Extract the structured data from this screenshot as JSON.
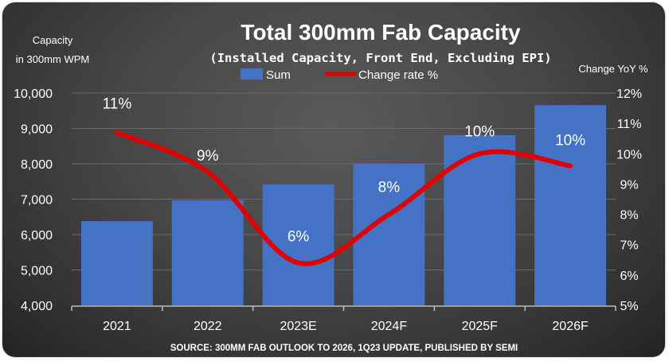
{
  "chart_data": {
    "type": "bar+line",
    "title": "Total 300mm Fab Capacity",
    "subtitle": "(Installed Capacity, Front End, Excluding EPI)",
    "ylabel_left": [
      "Capacity",
      "in 300mm WPM"
    ],
    "ylabel_right": "Change YoY %",
    "categories": [
      "2021",
      "2022",
      "2023E",
      "2024F",
      "2025F",
      "2026F"
    ],
    "ylim_left": [
      4000,
      10000
    ],
    "yticks_left": [
      "4,000",
      "5,000",
      "6,000",
      "7,000",
      "8,000",
      "9,000",
      "10,000"
    ],
    "ylim_right": [
      5,
      12
    ],
    "yticks_right": [
      "5%",
      "6%",
      "7%",
      "8%",
      "9%",
      "10%",
      "11%",
      "12%"
    ],
    "grid": true,
    "legend": "top-center",
    "series": [
      {
        "name": "Sum",
        "type": "bar",
        "color": "#4472c4",
        "values": [
          6380,
          6970,
          7420,
          8000,
          8810,
          9660
        ]
      },
      {
        "name": "Change rate %",
        "type": "line",
        "color": "#e00000",
        "values": [
          10.7,
          9.4,
          6.4,
          8.0,
          10.0,
          9.6
        ],
        "data_labels": [
          "11%",
          "9%",
          "6%",
          "8%",
          "10%",
          "10%"
        ]
      }
    ],
    "source": "SOURCE: 300MM FAB OUTLOOK TO 2026, 1Q23 UPDATE, PUBLISHED BY SEMI"
  }
}
